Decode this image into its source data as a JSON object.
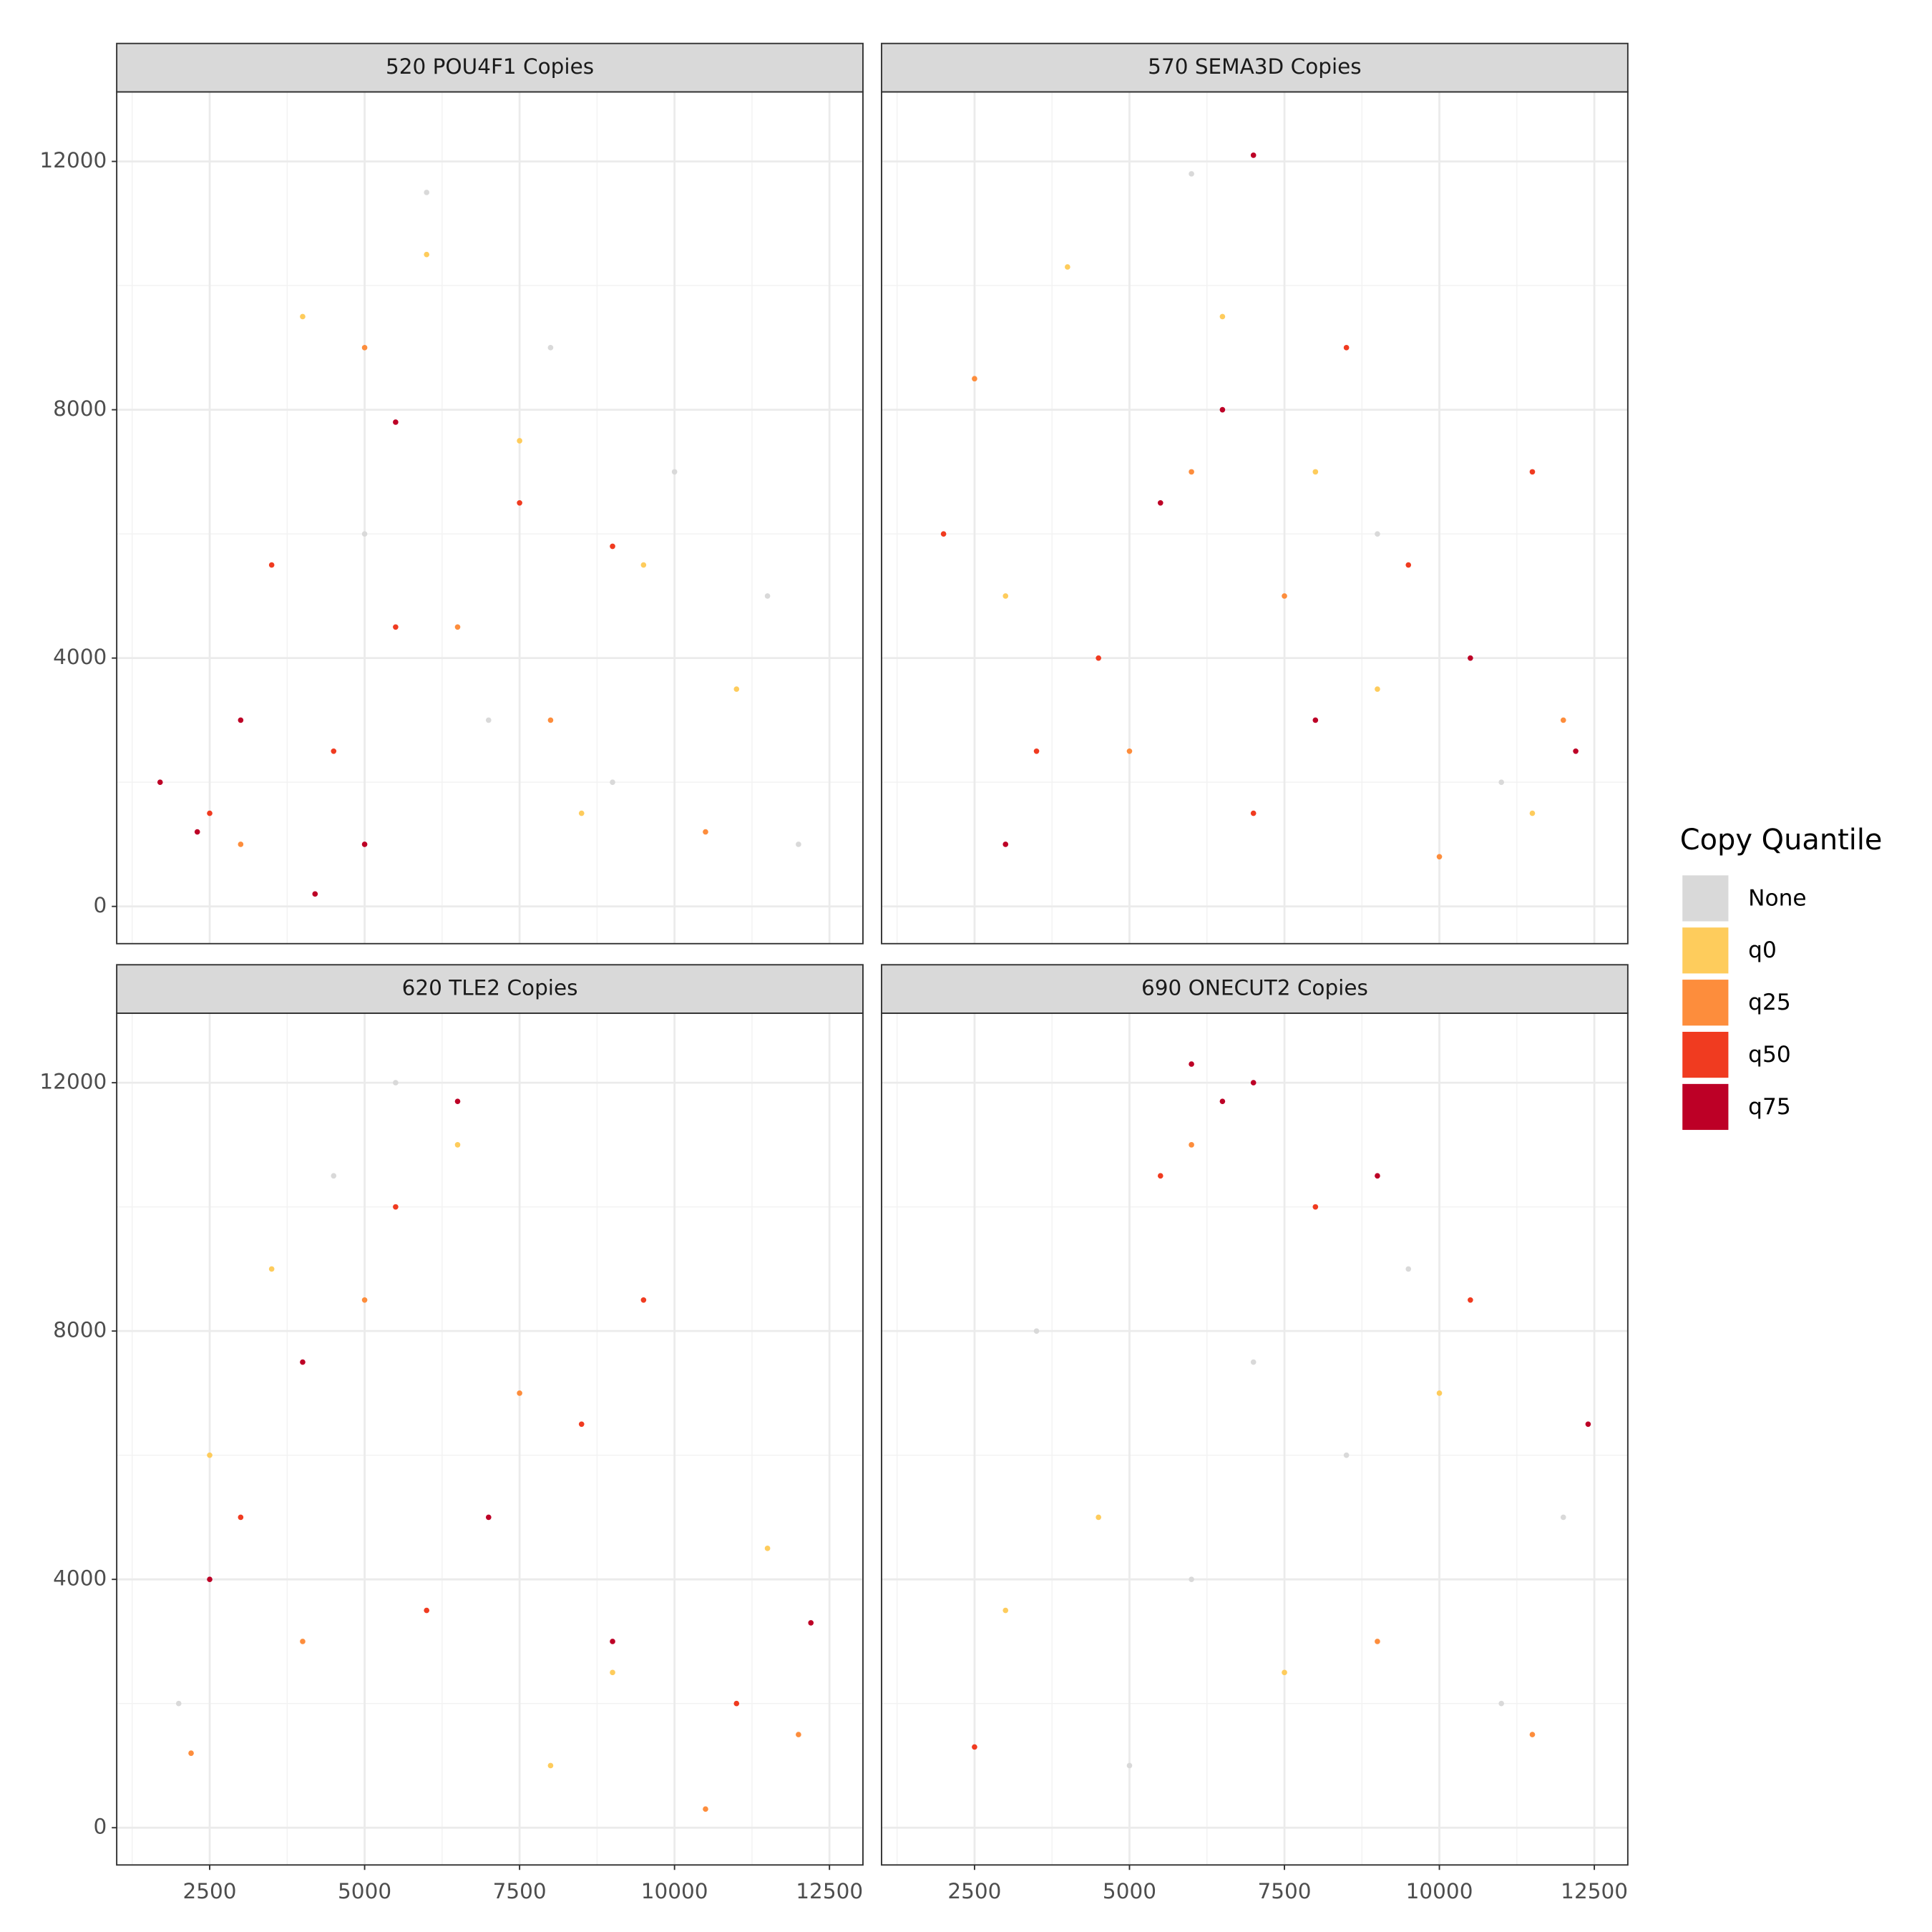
{
  "chart_data": {
    "type": "scatter",
    "xlim": [
      1000,
      13040
    ],
    "ylim": [
      -600,
      13120
    ],
    "xticks": [
      2500,
      5000,
      7500,
      10000,
      12500
    ],
    "yticks": [
      0,
      4000,
      8000,
      12000
    ],
    "grid": true,
    "legend_title": "Copy Quantile",
    "legend": [
      {
        "name": "None",
        "color": "#d9d9d9"
      },
      {
        "name": "q0",
        "color": "#fecc5c"
      },
      {
        "name": "q25",
        "color": "#fd8d3c"
      },
      {
        "name": "q50",
        "color": "#f03b20"
      },
      {
        "name": "q75",
        "color": "#bd0026"
      }
    ],
    "panels": [
      {
        "title": "520 POU4F1 Copies",
        "series": [
          {
            "x": [
              6000,
              8000,
              10000,
              11500,
              9000,
              5000,
              7000,
              12000
            ],
            "y": [
              11500,
              9000,
              7000,
              5000,
              2000,
              6000,
              3000,
              1000
            ]
          },
          {
            "x": [
              7500,
              9500,
              11000,
              4000,
              8500,
              6000
            ],
            "y": [
              7500,
              5500,
              3500,
              9500,
              1500,
              10500
            ]
          },
          {
            "x": [
              3000,
              6500,
              10500,
              5000,
              8000
            ],
            "y": [
              1000,
              4500,
              1200,
              9000,
              3000
            ]
          },
          {
            "x": [
              2500,
              4500,
              3500,
              7500,
              9000,
              5500
            ],
            "y": [
              1500,
              2500,
              5500,
              6500,
              5800,
              4500
            ]
          },
          {
            "x": [
              1700,
              2300,
              4200,
              5000,
              3000,
              5500
            ],
            "y": [
              2000,
              1200,
              200,
              1000,
              3000,
              7800
            ]
          }
        ]
      },
      {
        "title": "570 SEMA3D Copies",
        "series": [
          {
            "x": [
              6000,
              9000,
              11000
            ],
            "y": [
              11800,
              6000,
              2000
            ]
          },
          {
            "x": [
              4000,
              6500,
              9000,
              11500,
              3000,
              8000
            ],
            "y": [
              10300,
              9500,
              3500,
              1500,
              5000,
              7000
            ]
          },
          {
            "x": [
              2500,
              5000,
              7500,
              10000,
              12000,
              6000
            ],
            "y": [
              8500,
              2500,
              5000,
              800,
              3000,
              7000
            ]
          },
          {
            "x": [
              2000,
              4500,
              7000,
              9500,
              11500,
              3500,
              8500
            ],
            "y": [
              6000,
              4000,
              1500,
              5500,
              7000,
              2500,
              9000
            ]
          },
          {
            "x": [
              3000,
              5500,
              8000,
              10500,
              12200,
              7000,
              6500
            ],
            "y": [
              1000,
              6500,
              3000,
              4000,
              2500,
              12100,
              8000
            ]
          }
        ]
      },
      {
        "title": "620 TLE2 Copies",
        "series": [
          {
            "x": [
              5500,
              4500,
              2000
            ],
            "y": [
              12000,
              10500,
              2000
            ]
          },
          {
            "x": [
              3500,
              6500,
              9000,
              11500,
              2500,
              8000
            ],
            "y": [
              9000,
              11000,
              2500,
              4500,
              6000,
              1000
            ]
          },
          {
            "x": [
              2200,
              5000,
              7500,
              10500,
              12000,
              4000
            ],
            "y": [
              1200,
              8500,
              7000,
              300,
              1500,
              3000
            ]
          },
          {
            "x": [
              3000,
              6000,
              8500,
              11000,
              5500,
              9500
            ],
            "y": [
              5000,
              3500,
              6500,
              2000,
              10000,
              8500
            ]
          },
          {
            "x": [
              4000,
              7000,
              9000,
              12200,
              2500,
              6500
            ],
            "y": [
              7500,
              5000,
              3000,
              3300,
              4000,
              11700
            ]
          }
        ]
      },
      {
        "title": "690 ONECUT2 Copies",
        "series": [
          {
            "x": [
              3500,
              6000,
              8500,
              11000,
              5000,
              9500,
              7000,
              12000
            ],
            "y": [
              8000,
              4000,
              6000,
              2000,
              1000,
              9000,
              7500,
              5000
            ]
          },
          {
            "x": [
              4500,
              7500,
              10000,
              3000
            ],
            "y": [
              5000,
              2500,
              7000,
              3500
            ]
          },
          {
            "x": [
              6000,
              9000,
              11500
            ],
            "y": [
              11000,
              3000,
              1500
            ]
          },
          {
            "x": [
              5500,
              8000,
              10500,
              2500
            ],
            "y": [
              10500,
              10000,
              8500,
              1300
            ]
          },
          {
            "x": [
              6000,
              7000,
              6500,
              9000,
              12400
            ],
            "y": [
              12300,
              12000,
              11700,
              10500,
              6500
            ]
          }
        ]
      }
    ]
  }
}
